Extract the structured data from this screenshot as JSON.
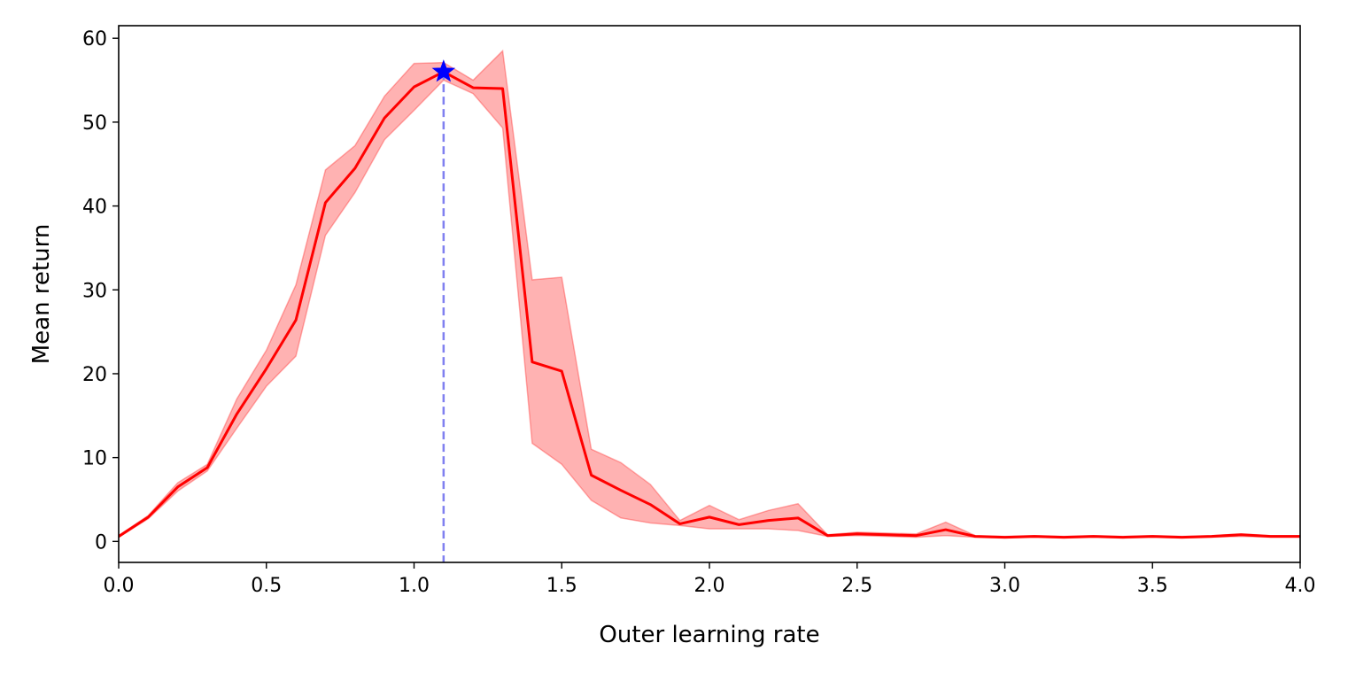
{
  "chart_data": {
    "type": "line",
    "title": "",
    "xlabel": "Outer learning rate",
    "ylabel": "Mean return",
    "xlim": [
      0.0,
      4.0
    ],
    "ylim": [
      -2.5,
      61.5
    ],
    "grid": false,
    "xticks": [
      0.0,
      0.5,
      1.0,
      1.5,
      2.0,
      2.5,
      3.0,
      3.5,
      4.0
    ],
    "xtick_labels": [
      "0.0",
      "0.5",
      "1.0",
      "1.5",
      "2.0",
      "2.5",
      "3.0",
      "3.5",
      "4.0"
    ],
    "yticks": [
      0,
      10,
      20,
      30,
      40,
      50,
      60
    ],
    "ytick_labels": [
      "0",
      "10",
      "20",
      "30",
      "40",
      "50",
      "60"
    ],
    "series": [
      {
        "name": "mean return",
        "color": "#ff0000",
        "x": [
          0.0,
          0.1,
          0.2,
          0.3,
          0.4,
          0.5,
          0.6,
          0.7,
          0.8,
          0.9,
          1.0,
          1.1,
          1.2,
          1.3,
          1.4,
          1.5,
          1.6,
          1.7,
          1.8,
          1.9,
          2.0,
          2.1,
          2.2,
          2.3,
          2.4,
          2.5,
          2.6,
          2.7,
          2.8,
          2.9,
          3.0,
          3.1,
          3.2,
          3.3,
          3.4,
          3.5,
          3.6,
          3.7,
          3.8,
          3.9,
          4.0
        ],
        "y": [
          0.6,
          2.9,
          6.5,
          8.8,
          15.2,
          20.6,
          26.4,
          40.4,
          44.5,
          50.5,
          54.2,
          56.0,
          54.1,
          54.0,
          21.4,
          20.3,
          7.9,
          6.1,
          4.4,
          2.1,
          2.9,
          2.0,
          2.5,
          2.8,
          0.7,
          0.9,
          0.8,
          0.7,
          1.4,
          0.6,
          0.5,
          0.6,
          0.5,
          0.6,
          0.5,
          0.6,
          0.5,
          0.6,
          0.8,
          0.6,
          0.6
        ],
        "band_upper": [
          0.7,
          3.1,
          7.0,
          9.2,
          17.0,
          22.8,
          30.6,
          44.3,
          47.2,
          53.1,
          57.0,
          57.1,
          55.0,
          58.5,
          31.2,
          31.5,
          11.0,
          9.4,
          6.8,
          2.5,
          4.3,
          2.6,
          3.7,
          4.5,
          0.8,
          1.1,
          1.0,
          0.9,
          2.3,
          0.7,
          0.6,
          0.7,
          0.6,
          0.7,
          0.6,
          0.7,
          0.6,
          0.7,
          0.9,
          0.7,
          0.7
        ],
        "band_lower": [
          0.5,
          2.7,
          6.0,
          8.4,
          13.5,
          18.5,
          22.1,
          36.5,
          41.6,
          47.9,
          51.4,
          55.0,
          53.4,
          49.3,
          11.7,
          9.2,
          4.9,
          2.8,
          2.2,
          1.9,
          1.5,
          1.5,
          1.5,
          1.3,
          0.6,
          0.7,
          0.6,
          0.5,
          0.7,
          0.5,
          0.4,
          0.5,
          0.4,
          0.5,
          0.4,
          0.5,
          0.4,
          0.5,
          0.6,
          0.5,
          0.5
        ],
        "band_color": "#ff0000"
      }
    ],
    "best": {
      "x": 1.1,
      "y": 56.0,
      "marker": "star",
      "color": "#0000ff",
      "vline_style": "dashed",
      "vline_color": "#8080f0"
    }
  }
}
